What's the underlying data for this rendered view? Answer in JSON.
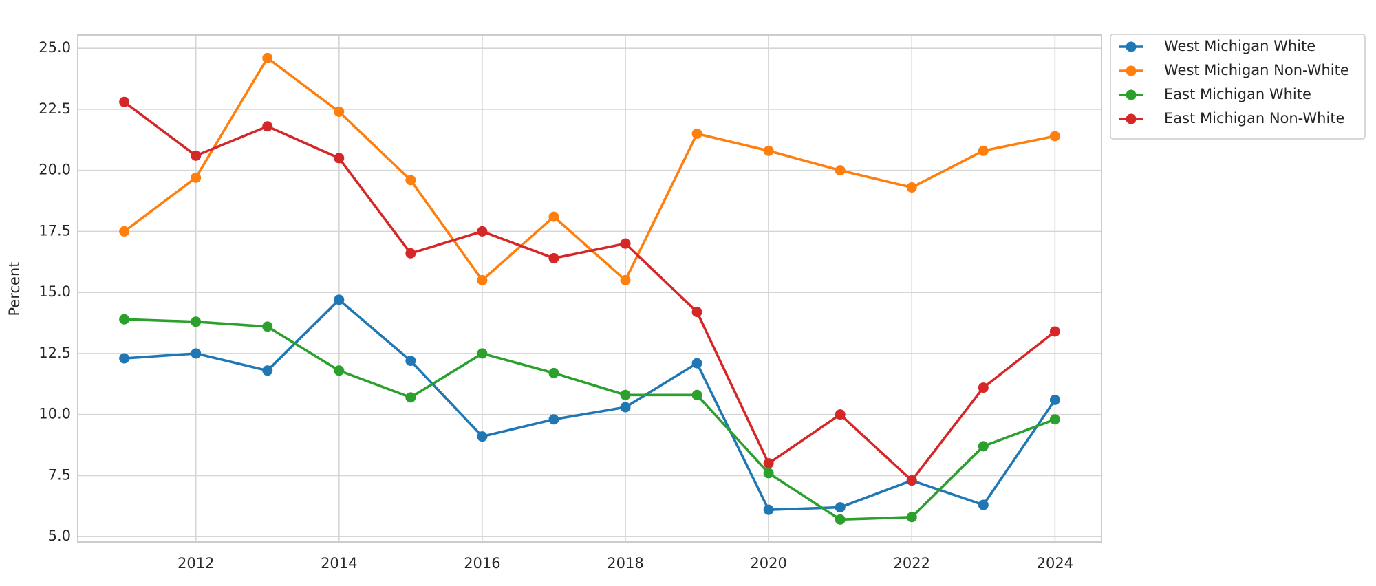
{
  "chart_data": {
    "type": "line",
    "y_label": "Percent",
    "x": [
      2011,
      2012,
      2013,
      2014,
      2015,
      2016,
      2017,
      2018,
      2019,
      2020,
      2021,
      2022,
      2023,
      2024
    ],
    "series": [
      {
        "name": "West Michigan White",
        "color": "#1f77b4",
        "values": [
          12.3,
          12.5,
          11.8,
          14.7,
          12.2,
          9.1,
          9.8,
          10.3,
          12.1,
          6.1,
          6.2,
          7.3,
          6.3,
          10.6
        ]
      },
      {
        "name": "West Michigan Non-White",
        "color": "#ff7f0e",
        "values": [
          17.5,
          19.7,
          24.6,
          22.4,
          19.6,
          15.5,
          18.1,
          15.5,
          21.5,
          20.8,
          20.0,
          19.3,
          20.8,
          21.4
        ]
      },
      {
        "name": "East Michigan White",
        "color": "#2ca02c",
        "values": [
          13.9,
          13.8,
          13.6,
          11.8,
          10.7,
          12.5,
          11.7,
          10.8,
          10.8,
          7.6,
          5.7,
          5.8,
          8.7,
          9.8
        ]
      },
      {
        "name": "East Michigan Non-White",
        "color": "#d62728",
        "values": [
          22.8,
          20.6,
          21.8,
          20.5,
          16.6,
          17.5,
          16.4,
          17.0,
          14.2,
          8.0,
          10.0,
          7.3,
          11.1,
          13.4
        ]
      }
    ],
    "xlim": [
      2010.35,
      2024.65
    ],
    "xticks": [
      2012,
      2014,
      2016,
      2018,
      2020,
      2022,
      2024
    ],
    "ylim": [
      4.78,
      25.54
    ],
    "yticks": [
      {
        "value": 5,
        "label": "5.0"
      },
      7.5,
      {
        "value": 10,
        "label": "10.0"
      },
      12.5,
      {
        "value": 15,
        "label": "15.0"
      },
      17.5,
      {
        "value": 20,
        "label": "20.0"
      },
      22.5,
      {
        "value": 25,
        "label": "25.0"
      }
    ],
    "grid": true,
    "legend": "outside upper right"
  }
}
